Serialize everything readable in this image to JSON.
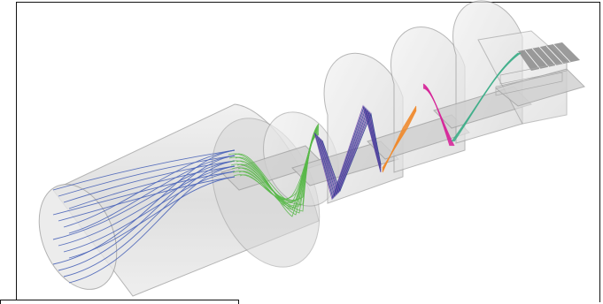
{
  "figure": {
    "kind": "3d-rendering",
    "subject": "particle-trajectories-through-cylindrical-cavities",
    "colors": {
      "cavity_fill": "#d9d9d9",
      "cavity_stroke": "#9a9a9a",
      "septum_fill": "#cfcfcf",
      "grid_fill": "#8a8a8a",
      "trace_blue": "#4a64b8",
      "trace_green": "#58b848",
      "trace_navy": "#2b3f8f",
      "trace_purple": "#7b4fb0",
      "trace_orange": "#f08a2c",
      "trace_magenta": "#d6289a",
      "trace_teal": "#3fae8a"
    },
    "cavity_count": 5
  }
}
